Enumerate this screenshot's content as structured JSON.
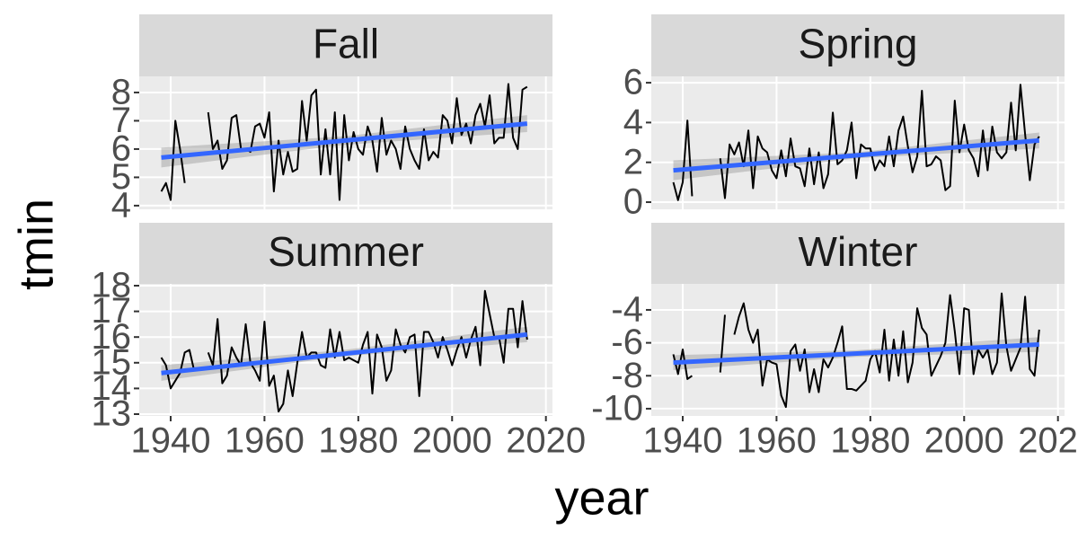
{
  "chart_data": {
    "type": "line",
    "xlabel": "year",
    "ylabel": "tmin",
    "xlim": [
      1933.3,
      2021.4
    ],
    "xticks": [
      1940,
      1960,
      1980,
      2000,
      2020
    ],
    "grid": true,
    "line_color": "#000000",
    "smooth_color": "#3366ff",
    "ci_color": "#999999",
    "x": [
      1938,
      1939,
      1940,
      1941,
      1942,
      1943,
      1944,
      1945,
      1946,
      1947,
      1948,
      1949,
      1950,
      1951,
      1952,
      1953,
      1954,
      1955,
      1956,
      1957,
      1958,
      1959,
      1960,
      1961,
      1962,
      1963,
      1964,
      1965,
      1966,
      1967,
      1968,
      1969,
      1970,
      1971,
      1972,
      1973,
      1974,
      1975,
      1976,
      1977,
      1978,
      1979,
      1980,
      1981,
      1982,
      1983,
      1984,
      1985,
      1986,
      1987,
      1988,
      1989,
      1990,
      1991,
      1992,
      1993,
      1994,
      1995,
      1996,
      1997,
      1998,
      1999,
      2000,
      2001,
      2002,
      2003,
      2004,
      2005,
      2006,
      2007,
      2008,
      2009,
      2010,
      2011,
      2012,
      2013,
      2014,
      2015,
      2016
    ],
    "facets": [
      {
        "title": "Fall",
        "ylim": [
          3.87,
          8.57
        ],
        "yticks": [
          4,
          5,
          6,
          7,
          8
        ],
        "values": [
          4.5,
          4.8,
          4.2,
          7.0,
          6.0,
          4.8,
          null,
          null,
          null,
          null,
          7.3,
          6.0,
          6.3,
          5.3,
          5.6,
          7.1,
          7.2,
          6.0,
          6.0,
          5.9,
          6.8,
          6.9,
          6.4,
          7.3,
          4.5,
          6.3,
          5.1,
          5.9,
          5.2,
          5.3,
          7.7,
          6.3,
          7.9,
          8.1,
          5.1,
          6.7,
          5.1,
          7.3,
          4.2,
          7.2,
          5.6,
          6.6,
          6.0,
          5.8,
          6.8,
          6.3,
          5.2,
          7.1,
          5.8,
          6.3,
          6.0,
          5.3,
          6.8,
          6.0,
          5.6,
          5.3,
          6.7,
          5.6,
          5.9,
          5.7,
          7.2,
          7.0,
          6.2,
          7.8,
          6.5,
          6.9,
          6.2,
          7.2,
          7.6,
          6.8,
          7.9,
          6.2,
          6.4,
          6.4,
          8.3,
          6.4,
          6.0,
          8.1,
          8.2
        ],
        "smooth": {
          "x": [
            1938,
            2016
          ],
          "values": [
            5.7,
            6.9
          ]
        },
        "ci": {
          "x": [
            1938,
            1977,
            2016
          ],
          "lower": [
            5.35,
            6.15,
            6.6
          ],
          "upper": [
            6.05,
            6.45,
            7.2
          ]
        }
      },
      {
        "title": "Spring",
        "ylim": [
          -0.36,
          6.32
        ],
        "yticks": [
          0,
          2,
          4,
          6
        ],
        "values": [
          1.0,
          0.1,
          1.0,
          4.1,
          0.3,
          null,
          null,
          null,
          null,
          null,
          2.2,
          0.2,
          2.9,
          2.4,
          3.0,
          1.8,
          3.6,
          0.7,
          3.3,
          2.7,
          2.5,
          1.6,
          1.2,
          2.6,
          1.3,
          3.2,
          1.8,
          1.7,
          0.8,
          2.7,
          0.9,
          2.5,
          0.7,
          1.4,
          4.5,
          1.9,
          2.1,
          2.6,
          4.0,
          1.2,
          2.9,
          2.7,
          2.7,
          1.6,
          2.1,
          1.8,
          3.3,
          1.8,
          3.6,
          4.3,
          2.8,
          1.5,
          2.3,
          5.6,
          1.8,
          1.9,
          2.3,
          2.1,
          0.6,
          0.8,
          5.1,
          2.5,
          3.9,
          2.6,
          2.2,
          1.3,
          3.6,
          1.6,
          3.8,
          2.5,
          2.2,
          2.5,
          5.0,
          2.6,
          5.9,
          3.4,
          1.1,
          2.9,
          3.3
        ],
        "smooth": {
          "x": [
            1938,
            2016
          ],
          "values": [
            1.6,
            3.1
          ]
        },
        "ci": {
          "x": [
            1938,
            1977,
            2016
          ],
          "lower": [
            1.1,
            2.2,
            2.7
          ],
          "upper": [
            2.1,
            2.5,
            3.5
          ]
        }
      },
      {
        "title": "Summer",
        "ylim": [
          12.93,
          18.07
        ],
        "yticks": [
          13,
          14,
          15,
          16,
          17,
          18
        ],
        "values": [
          15.2,
          14.9,
          14.0,
          14.3,
          14.6,
          15.4,
          15.5,
          14.7,
          null,
          null,
          15.4,
          14.9,
          16.7,
          14.2,
          14.5,
          15.6,
          15.2,
          14.9,
          16.5,
          15.0,
          14.7,
          14.3,
          16.6,
          14.1,
          14.5,
          13.1,
          13.4,
          14.7,
          13.7,
          15.0,
          16.2,
          15.2,
          15.4,
          15.4,
          14.9,
          14.8,
          16.3,
          15.2,
          16.2,
          15.1,
          15.2,
          15.1,
          15.0,
          15.7,
          16.2,
          13.8,
          16.1,
          15.6,
          14.3,
          14.7,
          16.3,
          15.7,
          15.4,
          16.0,
          16.1,
          13.7,
          16.2,
          16.2,
          15.8,
          15.2,
          16.0,
          15.5,
          14.9,
          15.5,
          16.0,
          15.2,
          15.9,
          16.4,
          14.9,
          17.8,
          16.9,
          16.0,
          16.0,
          15.0,
          17.1,
          17.1,
          15.6,
          17.4,
          15.9
        ],
        "smooth": {
          "x": [
            1938,
            2016
          ],
          "values": [
            14.6,
            16.1
          ]
        },
        "ci": {
          "x": [
            1938,
            1977,
            2016
          ],
          "lower": [
            14.3,
            15.25,
            15.8
          ],
          "upper": [
            14.9,
            15.5,
            16.4
          ]
        }
      },
      {
        "title": "Winter",
        "ylim": [
          -10.44,
          -2.42
        ],
        "yticks": [
          -10,
          -8,
          -6,
          -4
        ],
        "values": [
          -6.7,
          -7.9,
          -6.4,
          -8.2,
          -8.0,
          null,
          null,
          null,
          null,
          null,
          -7.8,
          -4.3,
          null,
          -5.5,
          -4.4,
          -3.6,
          -5.2,
          -6.0,
          -5.2,
          -8.6,
          -7.0,
          -7.2,
          -7.3,
          -9.2,
          -9.9,
          -6.5,
          -6.1,
          -7.7,
          -6.4,
          -9.0,
          -7.6,
          -9.0,
          -7.0,
          -7.5,
          -6.9,
          -6.0,
          -5.0,
          -8.8,
          -8.8,
          -8.9,
          -8.6,
          -8.3,
          -7.0,
          -6.5,
          -7.8,
          -5.2,
          -8.3,
          -5.8,
          -8.0,
          -5.3,
          -8.4,
          -7.2,
          -3.9,
          -5.1,
          -5.5,
          -8.0,
          -7.4,
          -6.8,
          -6.0,
          -3.1,
          -5.3,
          -7.9,
          -3.9,
          -4.0,
          -7.9,
          -6.4,
          -6.9,
          -6.4,
          -7.9,
          -7.2,
          -3.0,
          -6.2,
          -7.7,
          -7.0,
          -6.3,
          -3.2,
          -7.6,
          -8.0,
          -5.2
        ],
        "smooth": {
          "x": [
            1938,
            2016
          ],
          "values": [
            -7.2,
            -6.1
          ]
        },
        "ci": {
          "x": [
            1938,
            1977,
            2016
          ],
          "lower": [
            -7.65,
            -6.85,
            -6.55
          ],
          "upper": [
            -6.75,
            -6.45,
            -5.65
          ]
        }
      }
    ]
  }
}
